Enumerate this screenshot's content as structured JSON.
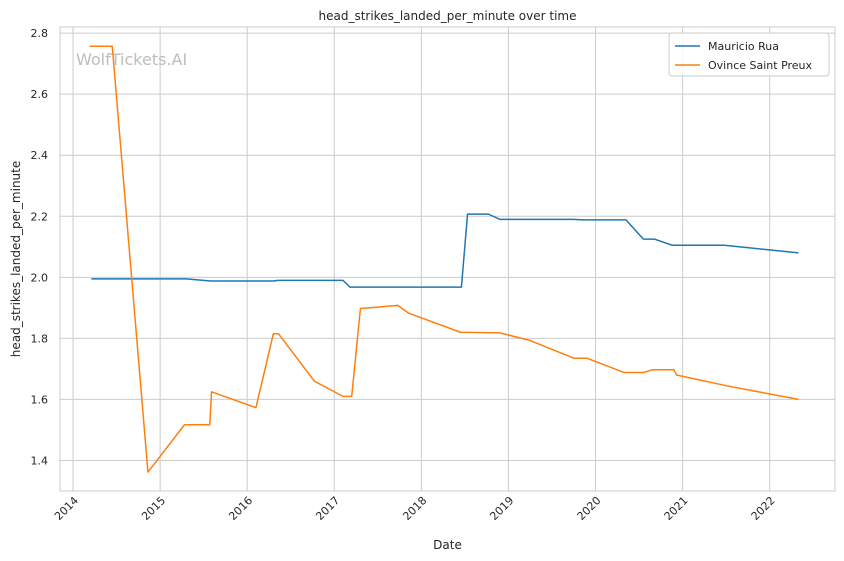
{
  "chart_data": {
    "type": "line",
    "title": "head_strikes_landed_per_minute over time",
    "xlabel": "Date",
    "ylabel": "head_strikes_landed_per_minute",
    "watermark": "WolfTickets.AI",
    "xlim": [
      2013.85,
      2022.75
    ],
    "ylim": [
      1.3,
      2.82
    ],
    "x_ticks": [
      2014,
      2015,
      2016,
      2017,
      2018,
      2019,
      2020,
      2021,
      2022
    ],
    "y_ticks": [
      1.4,
      1.6,
      1.8,
      2.0,
      2.2,
      2.4,
      2.6,
      2.8
    ],
    "grid": true,
    "legend_position": "top-right",
    "series": [
      {
        "name": "Mauricio Rua",
        "color": "#1f77b4",
        "points": [
          [
            2014.21,
            1.995
          ],
          [
            2015.3,
            1.995
          ],
          [
            2015.58,
            1.988
          ],
          [
            2016.3,
            1.988
          ],
          [
            2016.35,
            1.99
          ],
          [
            2017.1,
            1.99
          ],
          [
            2017.18,
            1.968
          ],
          [
            2018.46,
            1.968
          ],
          [
            2018.53,
            2.207
          ],
          [
            2018.77,
            2.207
          ],
          [
            2018.9,
            2.19
          ],
          [
            2019.75,
            2.19
          ],
          [
            2019.85,
            2.188
          ],
          [
            2020.35,
            2.188
          ],
          [
            2020.55,
            2.125
          ],
          [
            2020.68,
            2.125
          ],
          [
            2020.88,
            2.105
          ],
          [
            2021.48,
            2.105
          ],
          [
            2022.33,
            2.08
          ]
        ]
      },
      {
        "name": "Ovince Saint Preux",
        "color": "#ff7f0e",
        "points": [
          [
            2014.19,
            2.757
          ],
          [
            2014.45,
            2.757
          ],
          [
            2014.86,
            1.362
          ],
          [
            2015.28,
            1.517
          ],
          [
            2015.57,
            1.517
          ],
          [
            2015.59,
            1.625
          ],
          [
            2016.1,
            1.573
          ],
          [
            2016.3,
            1.815
          ],
          [
            2016.36,
            1.815
          ],
          [
            2016.77,
            1.66
          ],
          [
            2017.1,
            1.61
          ],
          [
            2017.2,
            1.61
          ],
          [
            2017.3,
            1.898
          ],
          [
            2017.73,
            1.908
          ],
          [
            2017.85,
            1.883
          ],
          [
            2018.45,
            1.82
          ],
          [
            2018.9,
            1.818
          ],
          [
            2019.25,
            1.793
          ],
          [
            2019.75,
            1.735
          ],
          [
            2019.9,
            1.735
          ],
          [
            2020.33,
            1.688
          ],
          [
            2020.55,
            1.688
          ],
          [
            2020.65,
            1.697
          ],
          [
            2020.9,
            1.697
          ],
          [
            2020.93,
            1.68
          ],
          [
            2021.5,
            1.645
          ],
          [
            2022.33,
            1.6
          ]
        ]
      }
    ]
  }
}
